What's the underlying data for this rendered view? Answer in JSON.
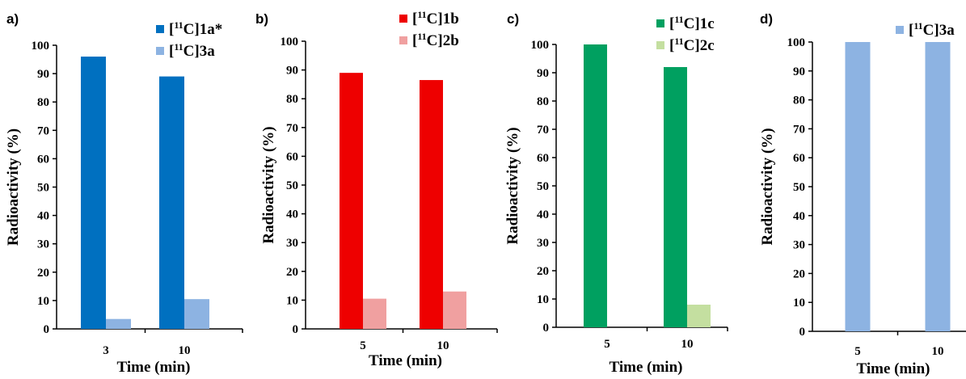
{
  "chart_data": [
    {
      "type": "bar",
      "panel": "a)",
      "categories": [
        "3",
        "10"
      ],
      "series": [
        {
          "name_prefix": "[",
          "name_sup": "11",
          "name_main": "C]1a*",
          "color": "#0070c0",
          "values": [
            96,
            89
          ]
        },
        {
          "name_prefix": "[",
          "name_sup": "11",
          "name_main": "C]3a",
          "color": "#8db3e2",
          "values": [
            3.5,
            10.5
          ]
        }
      ],
      "xlabel": "Time (min)",
      "ylabel": "Radioactivity (%)",
      "ylim": [
        0,
        100
      ],
      "yticks": [
        0,
        10,
        20,
        30,
        40,
        50,
        60,
        70,
        80,
        90,
        100
      ],
      "grid": false,
      "legend": "top-right"
    },
    {
      "type": "bar",
      "panel": "b)",
      "categories": [
        "5",
        "10"
      ],
      "series": [
        {
          "name_prefix": "[",
          "name_sup": "11",
          "name_main": "C]1b",
          "color": "#ee0000",
          "values": [
            89,
            86.5
          ]
        },
        {
          "name_prefix": "[",
          "name_sup": "11",
          "name_main": "C]2b",
          "color": "#f0a0a0",
          "values": [
            10.5,
            13
          ]
        }
      ],
      "xlabel": "Time (min)",
      "ylabel": "Radioactivity (%)",
      "ylim": [
        0,
        100
      ],
      "yticks": [
        0,
        10,
        20,
        30,
        40,
        50,
        60,
        70,
        80,
        90,
        100
      ],
      "grid": false,
      "legend": "top-right"
    },
    {
      "type": "bar",
      "panel": "c)",
      "categories": [
        "5",
        "10"
      ],
      "series": [
        {
          "name_prefix": "[",
          "name_sup": "11",
          "name_main": "C]1c",
          "color": "#00a060",
          "values": [
            100,
            92
          ]
        },
        {
          "name_prefix": "[",
          "name_sup": "11",
          "name_main": "C]2c",
          "color": "#c4dfa0",
          "values": [
            0,
            8
          ]
        }
      ],
      "xlabel": "Time (min)",
      "ylabel": "Radioactivity (%)",
      "ylim": [
        0,
        100
      ],
      "yticks": [
        0,
        10,
        20,
        30,
        40,
        50,
        60,
        70,
        80,
        90,
        100
      ],
      "grid": false,
      "legend": "top-right"
    },
    {
      "type": "bar",
      "panel": "d)",
      "categories": [
        "5",
        "10"
      ],
      "series": [
        {
          "name_prefix": "[",
          "name_sup": "11",
          "name_main": "C]3a",
          "color": "#8db3e2",
          "values": [
            100,
            100
          ]
        }
      ],
      "xlabel": "Time (min)",
      "ylabel": "Radioactivity (%)",
      "ylim": [
        0,
        100
      ],
      "yticks": [
        0,
        10,
        20,
        30,
        40,
        50,
        60,
        70,
        80,
        90,
        100
      ],
      "grid": false,
      "legend": "top-right"
    }
  ]
}
